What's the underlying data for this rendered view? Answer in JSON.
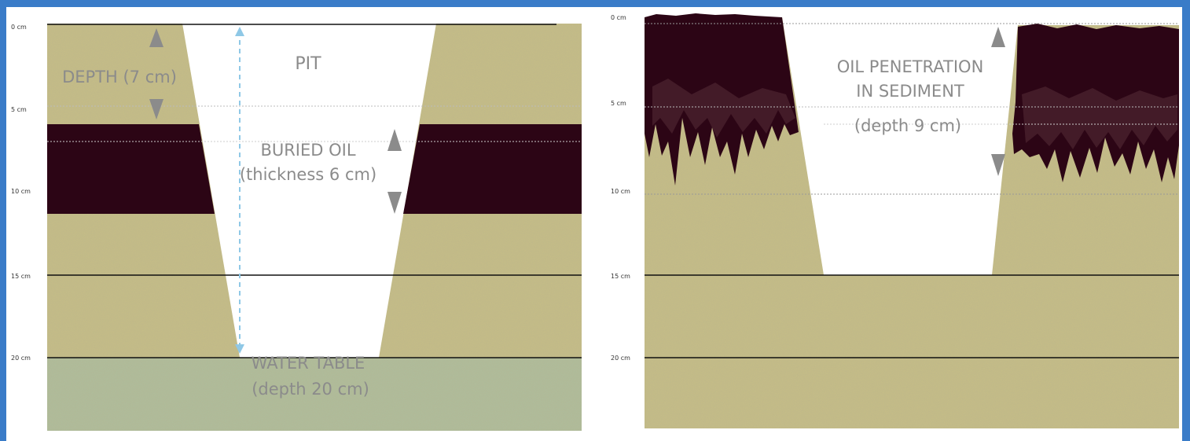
{
  "colors": {
    "frame": "#3a7cc8",
    "sand": "#c8bf85",
    "oil": "#2c0515",
    "water": "#aebf9c",
    "label": "#8b8b8b",
    "dashed_arrow": "#8fc8e6"
  },
  "left_panel": {
    "ticks": [
      "0 cm",
      "5 cm",
      "10 cm",
      "15 cm",
      "20 cm"
    ],
    "pit_label": "PIT",
    "depth_label": "DEPTH (7 cm)",
    "buried_oil_line1": "BURIED OIL",
    "buried_oil_line2": "(thickness 6 cm)",
    "water_line1": "WATER TABLE",
    "water_line2": "(depth 20 cm)"
  },
  "right_panel": {
    "ticks": [
      "0 cm",
      "5 cm",
      "10 cm",
      "15 cm",
      "20 cm"
    ],
    "pen_line1": "OIL PENETRATION",
    "pen_line2": "IN SEDIMENT",
    "pen_line3": "(depth 9 cm)"
  }
}
